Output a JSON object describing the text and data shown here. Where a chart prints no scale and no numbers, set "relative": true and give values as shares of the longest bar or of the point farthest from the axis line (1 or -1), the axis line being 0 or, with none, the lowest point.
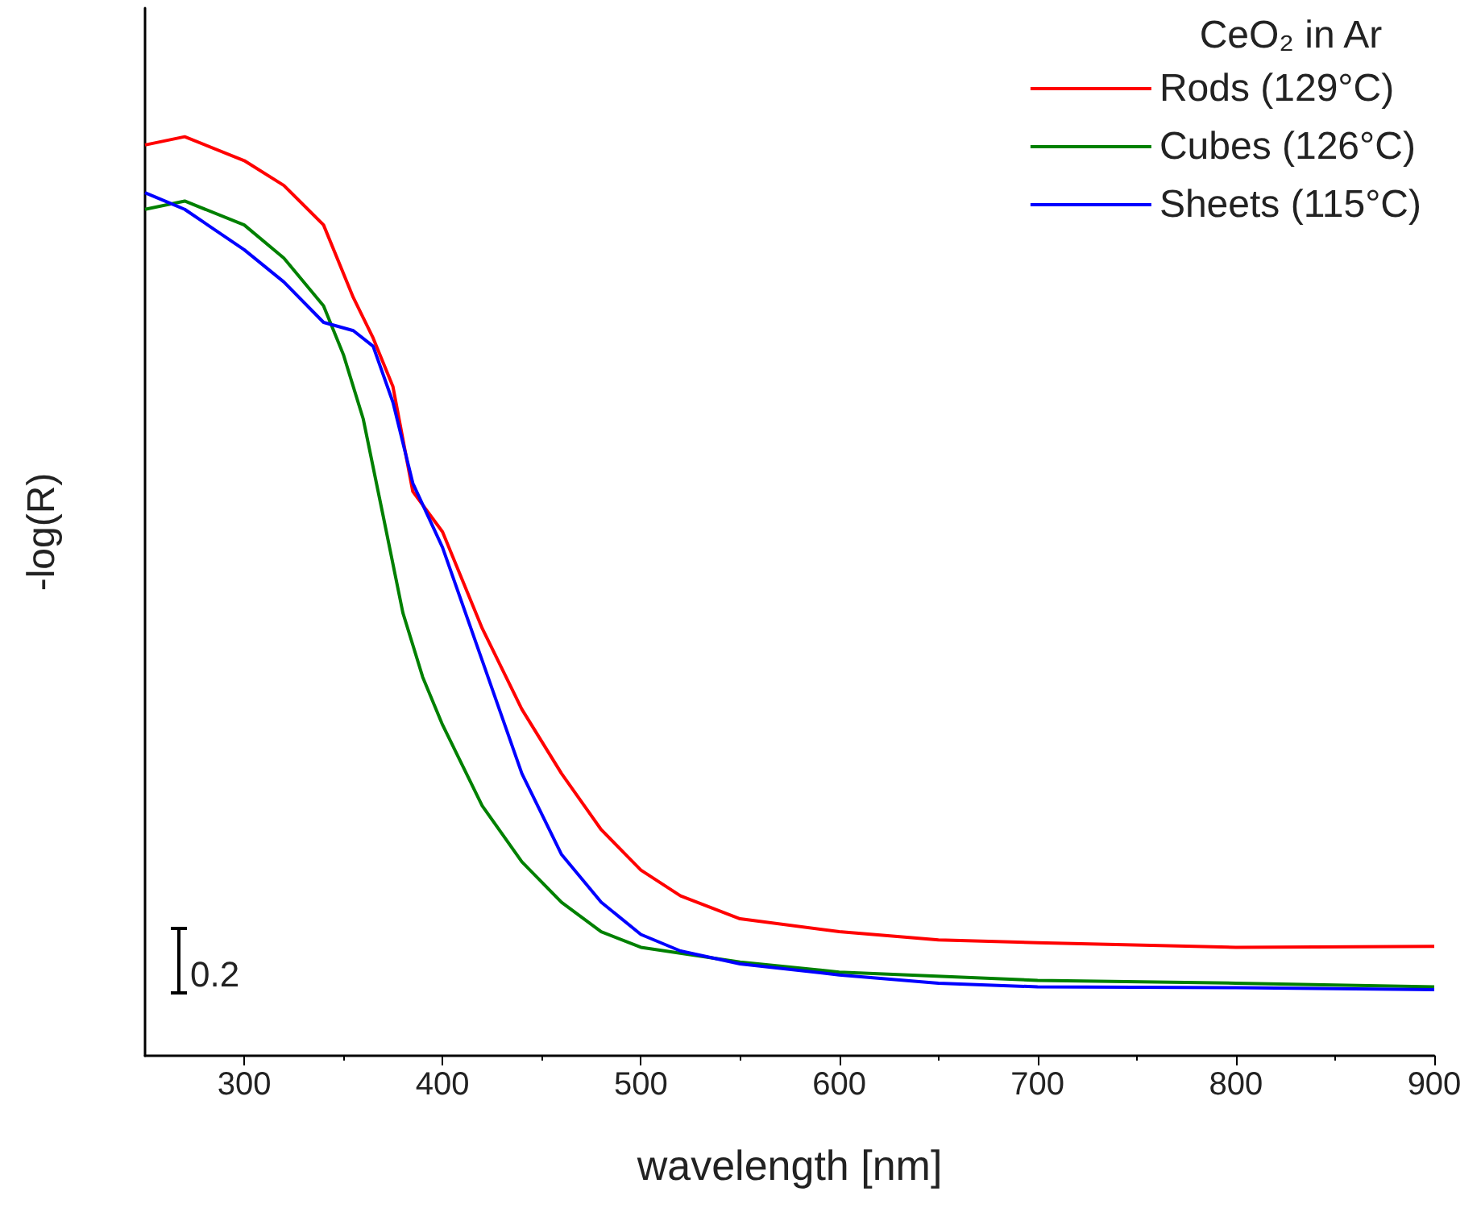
{
  "chart_data": {
    "type": "line",
    "relative": true,
    "xlabel": "wavelength [nm]",
    "ylabel": "-log(R)",
    "legend_title": "CeO₂ in Ar",
    "legend": "top right",
    "grid": false,
    "marker": "none",
    "xlim": [
      250,
      900
    ],
    "xticks": [
      300,
      400,
      500,
      600,
      700,
      800,
      900
    ],
    "annotations": [
      "0.2"
    ],
    "series": [
      {
        "name": "Rods (129°C)",
        "color": "#ff0000",
        "x": [
          250,
          270,
          300,
          320,
          340,
          355,
          365,
          375,
          385,
          400,
          420,
          440,
          460,
          480,
          500,
          520,
          550,
          600,
          650,
          700,
          800,
          900
        ],
        "values": [
          0.991,
          1.0,
          0.974,
          0.947,
          0.904,
          0.825,
          0.781,
          0.728,
          0.614,
          0.57,
          0.465,
          0.377,
          0.307,
          0.246,
          0.202,
          0.174,
          0.149,
          0.135,
          0.126,
          0.123,
          0.118,
          0.119
        ]
      },
      {
        "name": "Cubes (126°C)",
        "color": "#008000",
        "x": [
          250,
          270,
          300,
          320,
          340,
          350,
          360,
          370,
          380,
          390,
          400,
          420,
          440,
          460,
          480,
          500,
          550,
          600,
          700,
          800,
          900
        ],
        "values": [
          0.921,
          0.93,
          0.904,
          0.868,
          0.816,
          0.763,
          0.693,
          0.588,
          0.482,
          0.412,
          0.36,
          0.272,
          0.211,
          0.167,
          0.135,
          0.118,
          0.102,
          0.091,
          0.082,
          0.079,
          0.075
        ]
      },
      {
        "name": "Sheets (115°C)",
        "color": "#0000ff",
        "x": [
          250,
          270,
          300,
          320,
          340,
          355,
          365,
          375,
          385,
          400,
          420,
          440,
          460,
          480,
          500,
          520,
          550,
          600,
          650,
          700,
          800,
          900
        ],
        "values": [
          0.939,
          0.921,
          0.877,
          0.842,
          0.798,
          0.789,
          0.772,
          0.711,
          0.623,
          0.553,
          0.43,
          0.307,
          0.219,
          0.167,
          0.132,
          0.114,
          0.1,
          0.088,
          0.079,
          0.075,
          0.074,
          0.072
        ]
      }
    ]
  }
}
